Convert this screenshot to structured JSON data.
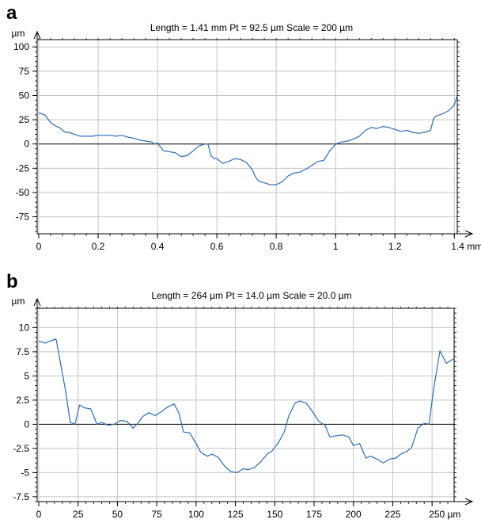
{
  "chart_data": [
    {
      "type": "line",
      "panel": "a",
      "title": "Length = 1.41 mm  Pt = 92.5 µm  Scale = 200 µm",
      "ylabel": "µm",
      "xlabel": "mm",
      "xlim": [
        0,
        1.41
      ],
      "ylim": [
        -92.5,
        107.5
      ],
      "x_ticks": [
        0,
        0.2,
        0.4,
        0.6,
        0.8,
        1,
        1.2,
        1.4
      ],
      "x_tick_labels": [
        "0",
        "0.2",
        "0.4",
        "0.6",
        "0.8",
        "1",
        "1.2",
        "1.4 mm"
      ],
      "y_ticks": [
        100,
        75,
        50,
        25,
        0,
        -25,
        -50,
        -75
      ],
      "y_tick_labels": [
        "100",
        "75",
        "50",
        "25",
        "0",
        "-25",
        "-50",
        "-75"
      ],
      "grid": true,
      "color": "#2f6db5",
      "series": [
        {
          "x": [
            0,
            0.01,
            0.02,
            0.03,
            0.04,
            0.05,
            0.06,
            0.07,
            0.08,
            0.09,
            0.1,
            0.12,
            0.14,
            0.16,
            0.18,
            0.2,
            0.22,
            0.24,
            0.26,
            0.28,
            0.3,
            0.32,
            0.34,
            0.36,
            0.38,
            0.39,
            0.4,
            0.41,
            0.42,
            0.44,
            0.46,
            0.48,
            0.5,
            0.52,
            0.54,
            0.56,
            0.57,
            0.58,
            0.59,
            0.6,
            0.62,
            0.64,
            0.66,
            0.68,
            0.7,
            0.72,
            0.73,
            0.74,
            0.76,
            0.78,
            0.8,
            0.82,
            0.84,
            0.86,
            0.88,
            0.9,
            0.92,
            0.94,
            0.96,
            0.98,
            0.99,
            1.0,
            1.02,
            1.04,
            1.06,
            1.08,
            1.1,
            1.12,
            1.14,
            1.16,
            1.18,
            1.2,
            1.22,
            1.24,
            1.26,
            1.28,
            1.3,
            1.32,
            1.33,
            1.34,
            1.36,
            1.38,
            1.4,
            1.41
          ],
          "y": [
            32,
            31,
            30,
            26,
            22,
            20,
            18,
            17,
            14,
            12,
            12,
            10,
            8,
            8,
            8,
            9,
            9,
            9,
            8,
            9,
            7,
            6,
            4,
            3,
            2,
            0,
            1,
            -3,
            -7,
            -8,
            -9,
            -13,
            -12,
            -7,
            -2,
            0,
            0,
            -12,
            -15,
            -15,
            -20,
            -18,
            -15,
            -16,
            -19,
            -27,
            -34,
            -38,
            -40,
            -42,
            -42,
            -39,
            -33,
            -30,
            -29,
            -26,
            -22,
            -18,
            -17,
            -7,
            -4,
            0,
            2,
            3,
            5,
            8,
            14,
            17,
            16,
            18,
            17,
            15,
            13,
            14,
            12,
            11,
            12,
            14,
            26,
            29,
            31,
            34,
            40,
            50
          ]
        }
      ]
    },
    {
      "type": "line",
      "panel": "b",
      "title": "Length = 264 µm  Pt = 14.0 µm  Scale = 20.0 µm",
      "ylabel": "µm",
      "xlabel": "µm",
      "xlim": [
        0,
        264
      ],
      "ylim": [
        -8,
        12
      ],
      "x_ticks": [
        0,
        25,
        50,
        75,
        100,
        125,
        150,
        175,
        200,
        225,
        250
      ],
      "x_tick_labels": [
        "0",
        "25",
        "50",
        "75",
        "100",
        "125",
        "150",
        "175",
        "200",
        "225",
        "250 µm"
      ],
      "y_ticks": [
        10,
        7.5,
        5,
        2.5,
        0,
        -2.5,
        -5,
        -7.5
      ],
      "y_tick_labels": [
        "10",
        "7.5",
        "5",
        "2.5",
        "0",
        "-2.5",
        "-5",
        "-7.5"
      ],
      "grid": true,
      "color": "#2f6db5",
      "series": [
        {
          "x": [
            0,
            4,
            7,
            11,
            17,
            20,
            23,
            26,
            29,
            33,
            37,
            40,
            44,
            48,
            52,
            56,
            60,
            63,
            66,
            70,
            74,
            78,
            82,
            86,
            89,
            92,
            96,
            100,
            103,
            107,
            110,
            114,
            118,
            122,
            126,
            130,
            133,
            137,
            141,
            145,
            148,
            152,
            156,
            159,
            163,
            166,
            170,
            174,
            178,
            182,
            185,
            189,
            193,
            197,
            200,
            204,
            208,
            211,
            215,
            219,
            223,
            227,
            230,
            234,
            237,
            241,
            245,
            248,
            251,
            255,
            259,
            264
          ],
          "y": [
            8.6,
            8.4,
            8.6,
            8.8,
            3.5,
            0.2,
            0.0,
            2.0,
            1.7,
            1.6,
            0.0,
            0.2,
            -0.1,
            0.0,
            0.4,
            0.3,
            -0.4,
            0.1,
            0.8,
            1.2,
            0.9,
            1.3,
            1.8,
            2.1,
            1.2,
            -0.8,
            -0.9,
            -2.0,
            -2.9,
            -3.3,
            -3.1,
            -3.4,
            -4.3,
            -4.9,
            -5.0,
            -4.6,
            -4.7,
            -4.5,
            -3.9,
            -3.1,
            -2.8,
            -2.0,
            -0.8,
            0.9,
            2.2,
            2.4,
            2.2,
            1.3,
            0.3,
            -0.1,
            -1.3,
            -1.2,
            -1.1,
            -1.3,
            -2.2,
            -2.0,
            -3.5,
            -3.3,
            -3.6,
            -4.0,
            -3.6,
            -3.5,
            -3.1,
            -2.8,
            -2.4,
            -0.4,
            0.1,
            0.0,
            3.6,
            7.6,
            6.3,
            6.8
          ]
        }
      ]
    }
  ]
}
